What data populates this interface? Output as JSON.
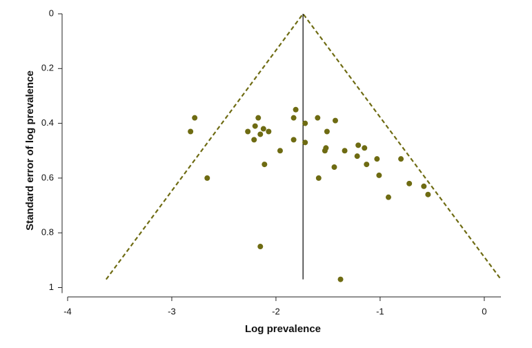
{
  "chart_data": {
    "type": "scatter",
    "x_label": "Log prevalence",
    "y_label": "Standard error of log prevalence",
    "x": [
      -2.82,
      -2.78,
      -2.66,
      -2.27,
      -2.2,
      -2.17,
      -2.21,
      -2.15,
      -2.12,
      -2.07,
      -2.11,
      -1.96,
      -2.15,
      -1.81,
      -1.83,
      -1.83,
      -1.72,
      -1.72,
      -1.6,
      -1.43,
      -1.51,
      -1.52,
      -1.53,
      -1.34,
      -1.59,
      -1.44,
      -1.38,
      -1.21,
      -1.15,
      -1.22,
      -1.13,
      -1.03,
      -1.01,
      -0.8,
      -0.92,
      -0.72,
      -0.58,
      -0.54
    ],
    "values": [
      0.43,
      0.38,
      0.6,
      0.43,
      0.41,
      0.38,
      0.46,
      0.44,
      0.42,
      0.43,
      0.55,
      0.5,
      0.85,
      0.35,
      0.38,
      0.46,
      0.4,
      0.47,
      0.38,
      0.39,
      0.43,
      0.49,
      0.5,
      0.5,
      0.6,
      0.56,
      0.97,
      0.48,
      0.49,
      0.52,
      0.55,
      0.53,
      0.59,
      0.53,
      0.67,
      0.62,
      0.63,
      0.66
    ],
    "color": "#6e6b12",
    "xlim": [
      -4,
      0.16
    ],
    "xticks": [
      -4,
      -3,
      -2,
      -1,
      0
    ],
    "ylim": [
      0,
      1
    ],
    "yticks": [
      0,
      0.2,
      0.4,
      0.6,
      0.8,
      1
    ],
    "y_inverted": true,
    "reference_line": -1.74,
    "funnel": {
      "x": [
        -3.63,
        -1.74,
        0.16
      ],
      "y": [
        0.97,
        0,
        0.97
      ]
    }
  }
}
